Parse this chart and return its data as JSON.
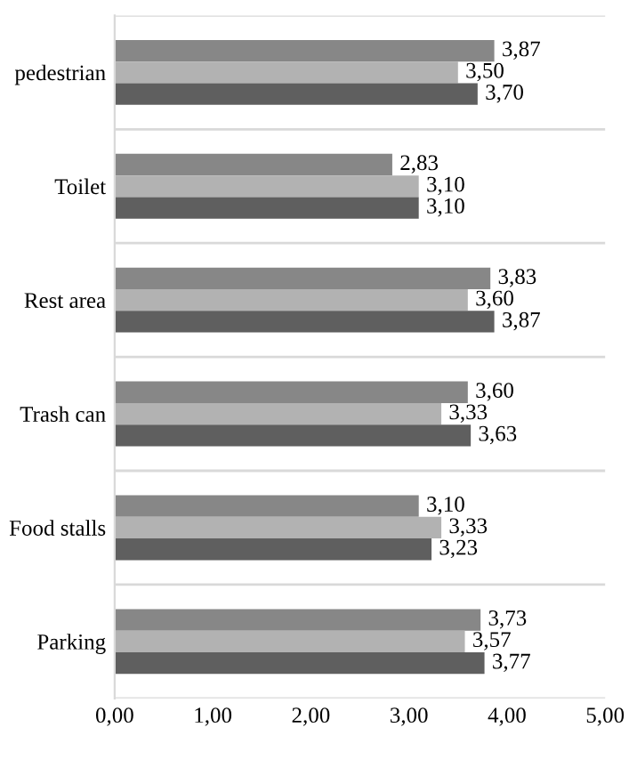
{
  "chart_data": {
    "type": "bar",
    "orientation": "horizontal",
    "categories": [
      "pedestrian",
      "Toilet",
      "Rest area",
      "Trash can",
      "Food stalls",
      "Parking"
    ],
    "series": [
      {
        "color": "#878787",
        "values": [
          3.87,
          2.83,
          3.83,
          3.6,
          3.1,
          3.73
        ],
        "value_labels": [
          "3,87",
          "2,83",
          "3,83",
          "3,60",
          "3,10",
          "3,73"
        ]
      },
      {
        "color": "#b2b2b2",
        "values": [
          3.5,
          3.1,
          3.6,
          3.33,
          3.33,
          3.57
        ],
        "value_labels": [
          "3,50",
          "3,10",
          "3,60",
          "3,33",
          "3,33",
          "3,57"
        ]
      },
      {
        "color": "#5f5f5f",
        "values": [
          3.7,
          3.1,
          3.87,
          3.63,
          3.23,
          3.77
        ],
        "value_labels": [
          "3,70",
          "3,10",
          "3,87",
          "3,63",
          "3,23",
          "3,77"
        ]
      }
    ],
    "xlim": [
      0,
      5
    ],
    "xticks": [
      {
        "value": 0,
        "label": "0,00"
      },
      {
        "value": 1,
        "label": "1,00"
      },
      {
        "value": 2,
        "label": "2,00"
      },
      {
        "value": 3,
        "label": "3,00"
      },
      {
        "value": 4,
        "label": "4,00"
      },
      {
        "value": 5,
        "label": "5,00"
      }
    ],
    "grid": "y",
    "legend": false
  }
}
